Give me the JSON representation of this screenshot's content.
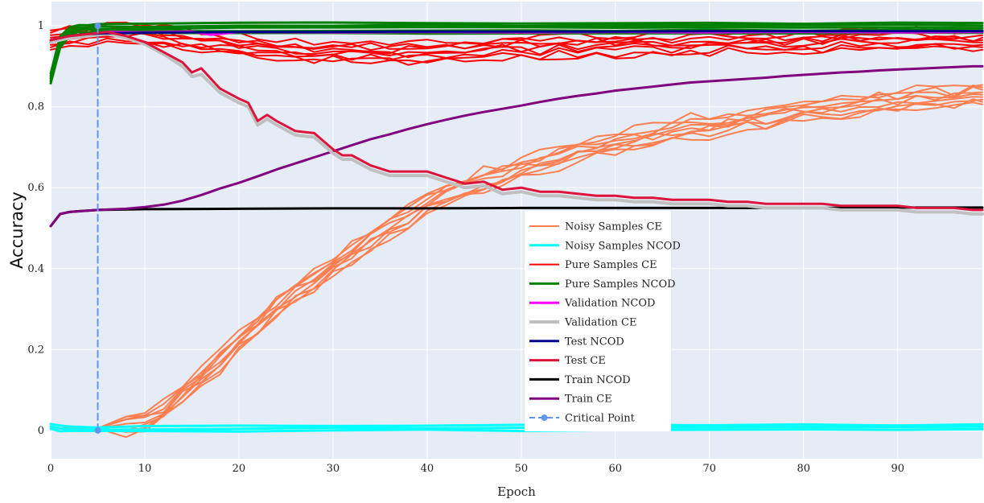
{
  "chart_data": {
    "type": "line",
    "title": "",
    "xlabel": "Epoch",
    "ylabel": "Accuracy",
    "xlim": [
      0,
      99
    ],
    "ylim": [
      -0.07,
      1.06
    ],
    "x_ticks": [
      0,
      10,
      20,
      30,
      40,
      50,
      60,
      70,
      80,
      90
    ],
    "x_tick_labels": [
      "0",
      "10",
      "20",
      "30",
      "40",
      "50",
      "60",
      "70",
      "80",
      "90"
    ],
    "y_ticks": [
      0,
      0.2,
      0.4,
      0.6,
      0.8,
      1
    ],
    "y_tick_labels": [
      "0",
      "0.2",
      "0.4",
      "0.6",
      "0.8",
      "1"
    ],
    "grid": true,
    "legend_position": "bottom-center",
    "plot_background": "#e5ecf6",
    "series": [
      {
        "name": "Noisy Samples CE",
        "color": "#ff7f50",
        "width": 2,
        "dash": "solid",
        "replicates": 9,
        "x": [
          0,
          5,
          8,
          10,
          12,
          14,
          16,
          18,
          20,
          22,
          24,
          26,
          28,
          30,
          32,
          34,
          36,
          38,
          40,
          42,
          44,
          46,
          48,
          50,
          52,
          54,
          56,
          58,
          60,
          62,
          64,
          66,
          68,
          70,
          72,
          74,
          76,
          78,
          80,
          82,
          84,
          86,
          88,
          90,
          92,
          94,
          96,
          98,
          99
        ],
        "y": [
          0.005,
          0.005,
          0.012,
          0.025,
          0.05,
          0.09,
          0.13,
          0.17,
          0.22,
          0.26,
          0.3,
          0.34,
          0.37,
          0.41,
          0.44,
          0.47,
          0.5,
          0.53,
          0.56,
          0.58,
          0.6,
          0.62,
          0.63,
          0.65,
          0.66,
          0.67,
          0.69,
          0.7,
          0.71,
          0.72,
          0.73,
          0.74,
          0.75,
          0.75,
          0.76,
          0.77,
          0.77,
          0.78,
          0.79,
          0.79,
          0.8,
          0.8,
          0.81,
          0.81,
          0.82,
          0.82,
          0.82,
          0.83,
          0.83
        ]
      },
      {
        "name": "Noisy Samples NCOD",
        "color": "#00ffff",
        "width": 3,
        "dash": "solid",
        "replicates": 3,
        "x": [
          0,
          1,
          2,
          5,
          10,
          20,
          30,
          40,
          50,
          60,
          70,
          80,
          90,
          99
        ],
        "y": [
          0.01,
          0.005,
          0.003,
          0.003,
          0.004,
          0.005,
          0.005,
          0.006,
          0.006,
          0.007,
          0.007,
          0.008,
          0.008,
          0.009
        ]
      },
      {
        "name": "Pure Samples CE",
        "color": "#ff0000",
        "width": 2,
        "dash": "solid",
        "replicates": 9,
        "x": [
          0,
          2,
          4,
          6,
          8,
          10,
          12,
          14,
          16,
          18,
          20,
          22,
          24,
          26,
          28,
          30,
          32,
          34,
          36,
          38,
          40,
          42,
          44,
          46,
          48,
          50,
          52,
          54,
          56,
          58,
          60,
          62,
          64,
          66,
          68,
          70,
          72,
          74,
          76,
          78,
          80,
          82,
          84,
          86,
          88,
          90,
          92,
          94,
          96,
          98,
          99
        ],
        "y": [
          0.965,
          0.975,
          0.98,
          0.985,
          0.985,
          0.98,
          0.975,
          0.965,
          0.96,
          0.955,
          0.95,
          0.945,
          0.94,
          0.94,
          0.935,
          0.935,
          0.935,
          0.935,
          0.935,
          0.935,
          0.935,
          0.94,
          0.94,
          0.94,
          0.945,
          0.945,
          0.945,
          0.95,
          0.95,
          0.95,
          0.95,
          0.955,
          0.955,
          0.955,
          0.955,
          0.955,
          0.96,
          0.96,
          0.96,
          0.96,
          0.96,
          0.96,
          0.965,
          0.965,
          0.965,
          0.965,
          0.965,
          0.965,
          0.965,
          0.965,
          0.965
        ]
      },
      {
        "name": "Pure Samples NCOD",
        "color": "#008000",
        "width": 3,
        "dash": "solid",
        "replicates": 5,
        "x": [
          0,
          1,
          2,
          3,
          4,
          5,
          10,
          20,
          30,
          40,
          50,
          60,
          70,
          80,
          90,
          99
        ],
        "y": [
          0.87,
          0.96,
          0.985,
          0.99,
          0.99,
          0.992,
          0.993,
          0.994,
          0.995,
          0.995,
          0.995,
          0.995,
          0.995,
          0.995,
          0.995,
          0.995
        ]
      },
      {
        "name": "Validation NCOD",
        "color": "#ff00ff",
        "width": 3,
        "dash": "solid",
        "x": [
          0,
          2,
          4,
          6,
          10,
          15,
          17,
          20,
          30,
          40,
          50,
          60,
          70,
          80,
          90,
          99
        ],
        "y": [
          0.965,
          0.975,
          0.98,
          0.985,
          0.984,
          0.986,
          0.978,
          0.985,
          0.984,
          0.985,
          0.984,
          0.985,
          0.984,
          0.985,
          0.984,
          0.985
        ]
      },
      {
        "name": "Validation CE",
        "color": "#c0c0c0",
        "width": 4,
        "dash": "solid",
        "x": [
          0,
          2,
          4,
          6,
          8,
          10,
          12,
          14,
          15,
          16,
          18,
          20,
          21,
          22,
          23,
          24,
          26,
          28,
          30,
          31,
          32,
          34,
          36,
          38,
          40,
          42,
          44,
          46,
          48,
          50,
          52,
          54,
          56,
          58,
          60,
          62,
          64,
          66,
          68,
          70,
          72,
          74,
          76,
          78,
          80,
          82,
          84,
          86,
          88,
          90,
          92,
          94,
          96,
          98,
          99
        ],
        "y": [
          0.96,
          0.97,
          0.975,
          0.98,
          0.97,
          0.955,
          0.93,
          0.9,
          0.875,
          0.88,
          0.835,
          0.81,
          0.8,
          0.755,
          0.77,
          0.755,
          0.73,
          0.725,
          0.685,
          0.67,
          0.67,
          0.645,
          0.63,
          0.63,
          0.63,
          0.615,
          0.6,
          0.605,
          0.585,
          0.59,
          0.58,
          0.58,
          0.575,
          0.57,
          0.57,
          0.565,
          0.565,
          0.56,
          0.56,
          0.56,
          0.555,
          0.555,
          0.55,
          0.55,
          0.55,
          0.55,
          0.545,
          0.545,
          0.545,
          0.545,
          0.54,
          0.54,
          0.54,
          0.535,
          0.535
        ]
      },
      {
        "name": "Test NCOD",
        "color": "#00008b",
        "width": 3,
        "dash": "solid",
        "x": [
          0,
          2,
          4,
          6,
          10,
          20,
          30,
          40,
          50,
          60,
          70,
          80,
          90,
          99
        ],
        "y": [
          0.965,
          0.975,
          0.98,
          0.982,
          0.983,
          0.985,
          0.985,
          0.986,
          0.986,
          0.986,
          0.987,
          0.987,
          0.987,
          0.987
        ]
      },
      {
        "name": "Test CE",
        "color": "#dc143c",
        "width": 3,
        "dash": "solid",
        "x": [
          0,
          2,
          4,
          6,
          8,
          10,
          12,
          14,
          15,
          16,
          18,
          20,
          21,
          22,
          23,
          24,
          26,
          28,
          30,
          31,
          32,
          34,
          36,
          38,
          40,
          42,
          44,
          46,
          48,
          50,
          52,
          54,
          56,
          58,
          60,
          62,
          64,
          66,
          68,
          70,
          72,
          74,
          76,
          78,
          80,
          82,
          84,
          86,
          88,
          90,
          92,
          94,
          96,
          98,
          99
        ],
        "y": [
          0.965,
          0.975,
          0.98,
          0.985,
          0.975,
          0.96,
          0.935,
          0.91,
          0.885,
          0.895,
          0.845,
          0.82,
          0.81,
          0.765,
          0.78,
          0.765,
          0.74,
          0.735,
          0.695,
          0.68,
          0.68,
          0.655,
          0.64,
          0.64,
          0.64,
          0.625,
          0.61,
          0.615,
          0.595,
          0.6,
          0.59,
          0.59,
          0.585,
          0.58,
          0.58,
          0.575,
          0.575,
          0.57,
          0.57,
          0.57,
          0.565,
          0.565,
          0.56,
          0.56,
          0.56,
          0.56,
          0.555,
          0.555,
          0.555,
          0.555,
          0.55,
          0.55,
          0.55,
          0.545,
          0.545
        ]
      },
      {
        "name": "Train NCOD",
        "color": "#000000",
        "width": 3,
        "dash": "solid",
        "x": [
          0,
          1,
          2,
          3,
          5,
          10,
          20,
          30,
          40,
          50,
          60,
          70,
          80,
          90,
          99
        ],
        "y": [
          0.505,
          0.535,
          0.54,
          0.542,
          0.545,
          0.547,
          0.548,
          0.549,
          0.549,
          0.55,
          0.55,
          0.55,
          0.55,
          0.551,
          0.551
        ]
      },
      {
        "name": "Train CE",
        "color": "#800080",
        "width": 3,
        "dash": "solid",
        "x": [
          0,
          1,
          2,
          5,
          8,
          10,
          12,
          14,
          16,
          18,
          20,
          22,
          24,
          26,
          28,
          30,
          32,
          34,
          36,
          38,
          40,
          42,
          44,
          46,
          48,
          50,
          52,
          54,
          56,
          58,
          60,
          62,
          64,
          66,
          68,
          70,
          72,
          74,
          76,
          78,
          80,
          82,
          84,
          86,
          88,
          90,
          92,
          94,
          96,
          98,
          99
        ],
        "y": [
          0.505,
          0.535,
          0.54,
          0.545,
          0.548,
          0.552,
          0.558,
          0.568,
          0.582,
          0.598,
          0.612,
          0.628,
          0.645,
          0.66,
          0.675,
          0.69,
          0.705,
          0.72,
          0.732,
          0.745,
          0.757,
          0.768,
          0.778,
          0.787,
          0.795,
          0.803,
          0.812,
          0.82,
          0.827,
          0.833,
          0.84,
          0.845,
          0.85,
          0.855,
          0.86,
          0.863,
          0.866,
          0.869,
          0.872,
          0.876,
          0.879,
          0.882,
          0.885,
          0.887,
          0.89,
          0.892,
          0.894,
          0.896,
          0.898,
          0.9,
          0.9
        ]
      },
      {
        "name": "Critical Point",
        "color": "#6495ed",
        "width": 2,
        "dash": "dashed",
        "marker": "circle",
        "x": [
          5,
          5
        ],
        "y": [
          0,
          1
        ]
      }
    ]
  }
}
